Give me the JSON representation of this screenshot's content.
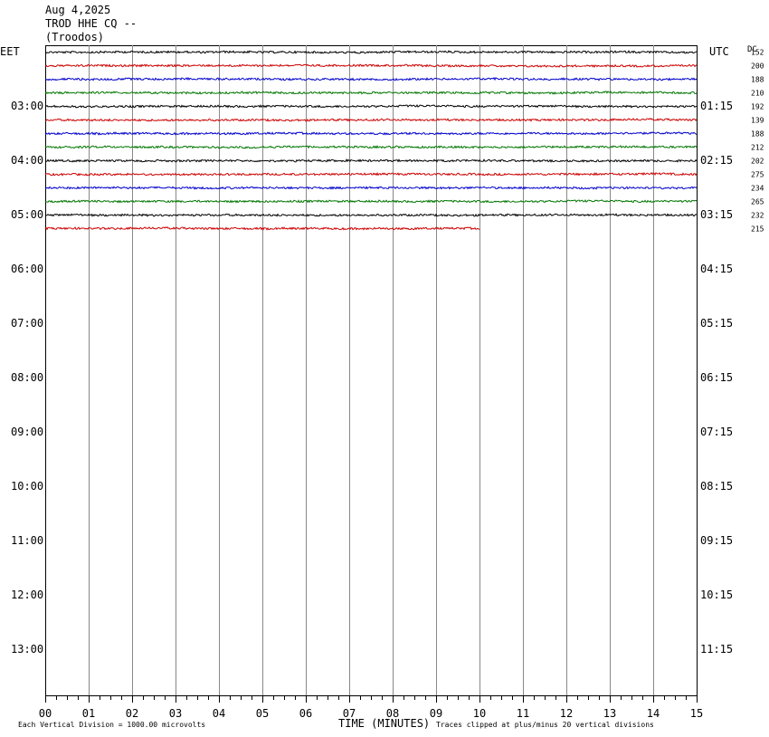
{
  "header": {
    "date": "Aug 4,2025",
    "station": "TROD HHE CQ --",
    "location": "(Troodos)"
  },
  "chart_data": {
    "type": "line",
    "left_axis_label": "EET",
    "right_axis_label": "UTC",
    "dc_label": "DC",
    "x_axis_label": "TIME (MINUTES)",
    "x_ticks": [
      "00",
      "01",
      "02",
      "03",
      "04",
      "05",
      "06",
      "07",
      "08",
      "09",
      "10",
      "11",
      "12",
      "13",
      "14",
      "15"
    ],
    "xlim": [
      0,
      15
    ],
    "left_time_labels": [
      "03:00",
      "04:00",
      "05:00",
      "06:00",
      "07:00",
      "08:00",
      "09:00",
      "10:00",
      "11:00",
      "12:00",
      "13:00"
    ],
    "right_time_labels": [
      "01:15",
      "02:15",
      "03:15",
      "04:15",
      "05:15",
      "06:15",
      "07:15",
      "08:15",
      "09:15",
      "10:15",
      "11:15"
    ],
    "trace_colors": [
      "#000000",
      "#cc0000",
      "#0000cc",
      "#007700"
    ],
    "traces": [
      {
        "dc": "152",
        "minutes": 15
      },
      {
        "dc": "200",
        "minutes": 15
      },
      {
        "dc": "188",
        "minutes": 15
      },
      {
        "dc": "210",
        "minutes": 15
      },
      {
        "dc": "192",
        "minutes": 15
      },
      {
        "dc": "139",
        "minutes": 15
      },
      {
        "dc": "188",
        "minutes": 15
      },
      {
        "dc": "212",
        "minutes": 15
      },
      {
        "dc": "202",
        "minutes": 15
      },
      {
        "dc": "275",
        "minutes": 15
      },
      {
        "dc": "234",
        "minutes": 15
      },
      {
        "dc": "265",
        "minutes": 15
      },
      {
        "dc": "232",
        "minutes": 15
      },
      {
        "dc": "215",
        "minutes": 10
      }
    ],
    "footer_left": "Each Vertical Division = 1000.00 microvolts",
    "footer_right": "Traces clipped at plus/minus 20 vertical divisions"
  }
}
